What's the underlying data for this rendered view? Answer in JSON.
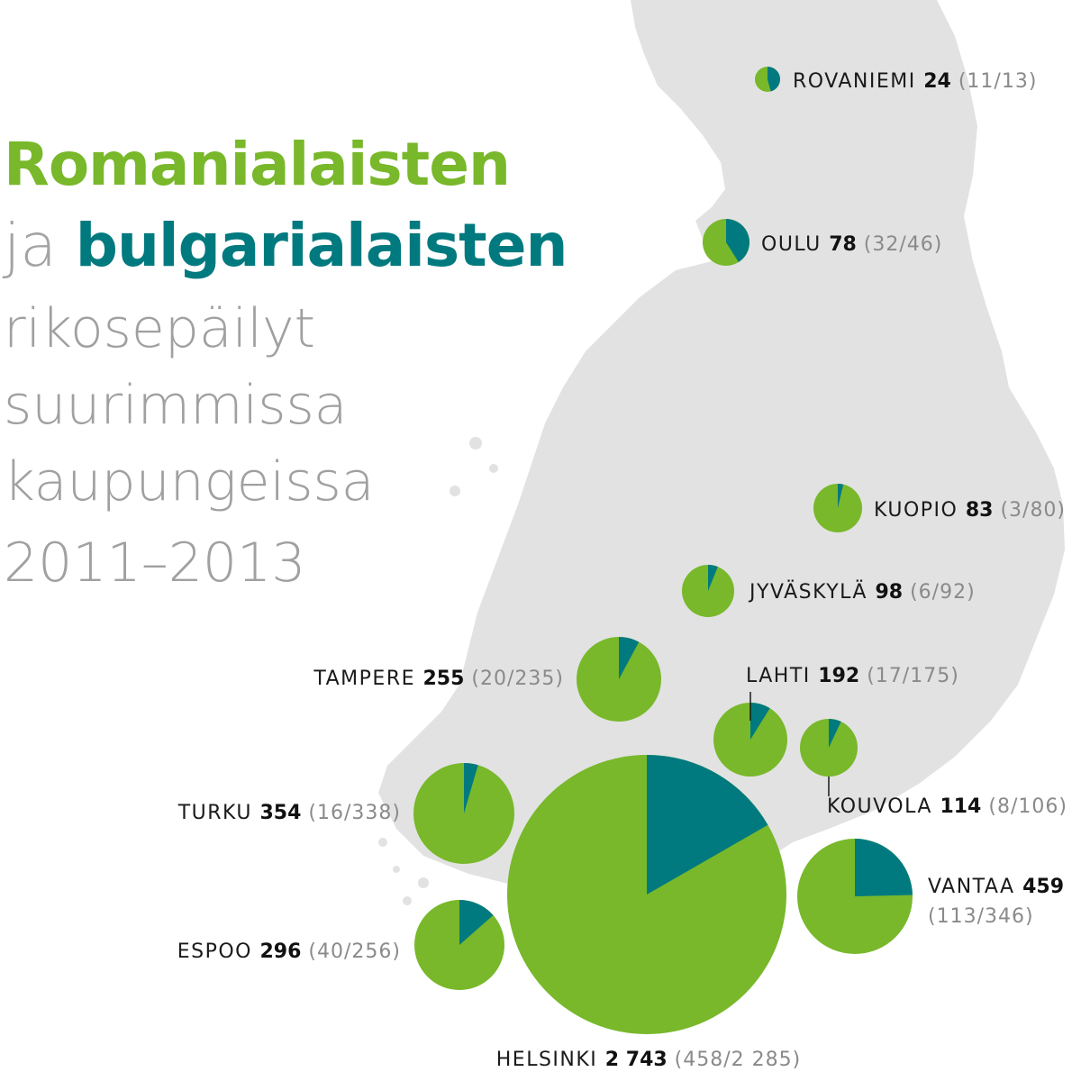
{
  "title": {
    "line1": "Romanialaisten",
    "line2_ja": "ja",
    "line2_bulgarian": "bulgarialaisten",
    "line3": "rikosepäilyt",
    "line4": "suurimmissa",
    "line5": "kaupungeissa",
    "line6": "2011–2013"
  },
  "colors": {
    "romanian": "#78b82a",
    "bulgarian": "#007a7f",
    "land": "#e2e2e2"
  },
  "cities": [
    {
      "name": "ROVANIEMI",
      "total": "24",
      "detail": "(11/13)",
      "bulgarian": 11,
      "romanian": 13
    },
    {
      "name": "OULU",
      "total": "78",
      "detail": "(32/46)",
      "bulgarian": 32,
      "romanian": 46
    },
    {
      "name": "KUOPIO",
      "total": "83",
      "detail": "(3/80)",
      "bulgarian": 3,
      "romanian": 80
    },
    {
      "name": "JYVÄSKYLÄ",
      "total": "98",
      "detail": "(6/92)",
      "bulgarian": 6,
      "romanian": 92
    },
    {
      "name": "TAMPERE",
      "total": "255",
      "detail": "(20/235)",
      "bulgarian": 20,
      "romanian": 235
    },
    {
      "name": "LAHTI",
      "total": "192",
      "detail": "(17/175)",
      "bulgarian": 17,
      "romanian": 175
    },
    {
      "name": "KOUVOLA",
      "total": "114",
      "detail": "(8/106)",
      "bulgarian": 8,
      "romanian": 106
    },
    {
      "name": "TURKU",
      "total": "354",
      "detail": "(16/338)",
      "bulgarian": 16,
      "romanian": 338
    },
    {
      "name": "VANTAA",
      "total": "459",
      "detail": "(113/346)",
      "bulgarian": 113,
      "romanian": 346
    },
    {
      "name": "ESPOO",
      "total": "296",
      "detail": "(40/256)",
      "bulgarian": 40,
      "romanian": 256
    },
    {
      "name": "HELSINKI",
      "total": "2 743",
      "detail": "(458/2 285)",
      "bulgarian": 458,
      "romanian": 2285
    }
  ]
}
